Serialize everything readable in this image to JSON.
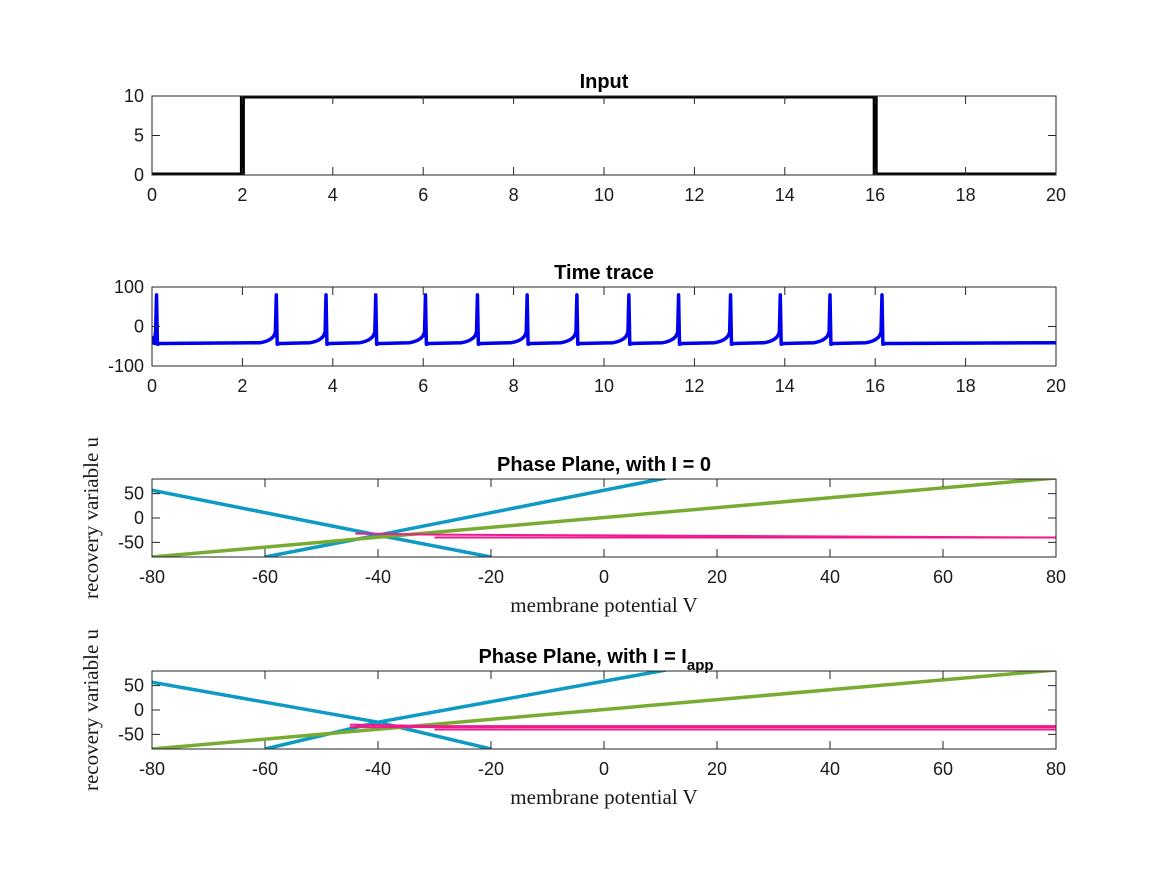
{
  "colors": {
    "input": "#000000",
    "trace": "#0000ee",
    "v_nullcline": "#0f9ac4",
    "u_nullcline": "#77ac30",
    "trajectory": "#ee1a8e"
  },
  "chart_data": [
    {
      "type": "line",
      "title": "Input",
      "xlim": [
        0,
        20
      ],
      "ylim": [
        0,
        10
      ],
      "xticks": [
        "0",
        "2",
        "4",
        "6",
        "8",
        "10",
        "12",
        "14",
        "16",
        "18",
        "20"
      ],
      "yticks": [
        "0",
        "5",
        "10"
      ],
      "series": [
        {
          "x": [
            0,
            2,
            2,
            16,
            16,
            20
          ],
          "y": [
            0,
            0,
            10,
            10,
            0,
            0
          ]
        }
      ]
    },
    {
      "type": "line",
      "title": "Time trace",
      "xlim": [
        0,
        20
      ],
      "ylim": [
        -100,
        100
      ],
      "xticks": [
        "0",
        "2",
        "4",
        "6",
        "8",
        "10",
        "12",
        "14",
        "16",
        "18",
        "20"
      ],
      "yticks": [
        "-100",
        "0",
        "100"
      ],
      "rest_potential": -43,
      "spike_peak": 80,
      "spike_times": [
        0.1,
        2.75,
        3.85,
        4.95,
        6.05,
        7.2,
        8.3,
        9.4,
        10.55,
        11.65,
        12.8,
        13.9,
        15.0,
        16.15
      ]
    },
    {
      "type": "line",
      "title": "Phase Plane, with I = 0",
      "xlabel": "membrane potential V",
      "ylabel": "recovery variable u",
      "xlim": [
        -80,
        80
      ],
      "ylim": [
        -80,
        80
      ],
      "xticks": [
        "-80",
        "-60",
        "-40",
        "-20",
        "0",
        "20",
        "40",
        "60",
        "80"
      ],
      "yticks": [
        "-50",
        "0",
        "50"
      ],
      "v_nullcline": [
        {
          "x": [
            -80,
            -40,
            -20
          ],
          "y": [
            57,
            -35,
            -80
          ]
        },
        {
          "x": [
            -60,
            -40,
            11
          ],
          "y": [
            -80,
            -35,
            82
          ]
        }
      ],
      "u_nullcline": {
        "x": [
          -80,
          80
        ],
        "y": [
          -80,
          82
        ]
      },
      "trajectory": [
        {
          "x": [
            -44,
            -30,
            80
          ],
          "y": [
            -32,
            -34,
            -40
          ]
        },
        {
          "x": [
            -30,
            80
          ],
          "y": [
            -40,
            -40
          ]
        }
      ]
    },
    {
      "type": "line",
      "title": "Phase Plane, with I = I",
      "title_sub": "app",
      "xlabel": "membrane potential V",
      "ylabel": "recovery variable u",
      "xlim": [
        -80,
        80
      ],
      "ylim": [
        -80,
        80
      ],
      "xticks": [
        "-80",
        "-60",
        "-40",
        "-20",
        "0",
        "20",
        "40",
        "60",
        "80"
      ],
      "yticks": [
        "-50",
        "0",
        "50"
      ],
      "v_nullcline": [
        {
          "x": [
            -80,
            -40,
            -20
          ],
          "y": [
            57,
            -25,
            -80
          ]
        },
        {
          "x": [
            -60,
            -40,
            11
          ],
          "y": [
            -80,
            -25,
            82
          ]
        }
      ],
      "u_nullcline": {
        "x": [
          -80,
          80
        ],
        "y": [
          -80,
          82
        ]
      },
      "trajectory": [
        {
          "x": [
            -45,
            -30,
            80
          ],
          "y": [
            -30,
            -33,
            -33
          ]
        },
        {
          "x": [
            -45,
            80
          ],
          "y": [
            -35,
            -35
          ]
        },
        {
          "x": [
            -30,
            80
          ],
          "y": [
            -40,
            -40
          ]
        }
      ]
    }
  ]
}
